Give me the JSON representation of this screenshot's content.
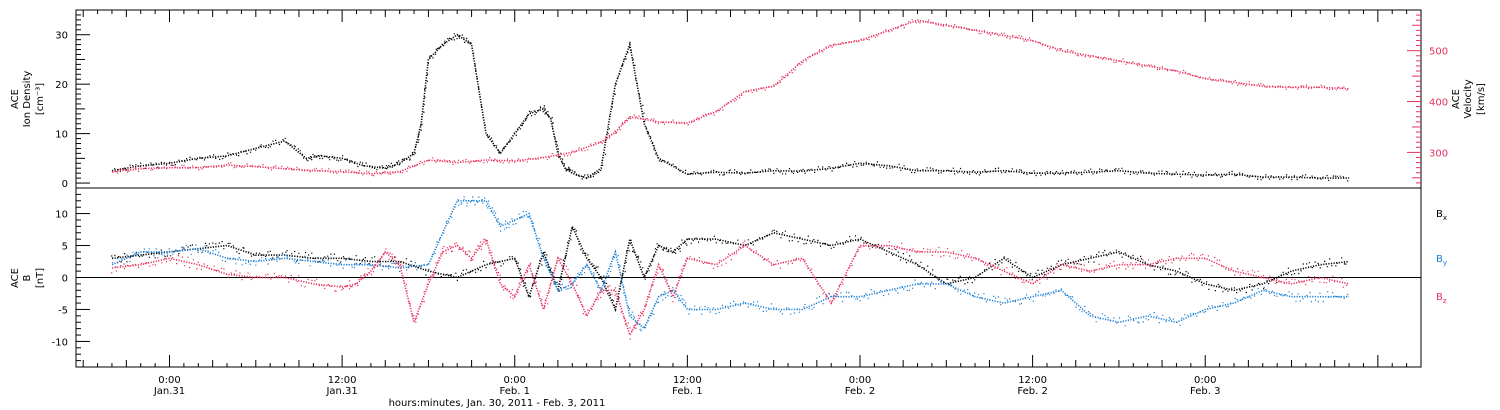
{
  "chart_data": [
    {
      "type": "scatter",
      "ylabel_left_lines": [
        "ACE",
        "Ion Density",
        "[cm⁻³]"
      ],
      "ylabel_right_lines": [
        "ACE",
        "Velocity",
        "[km/s]"
      ],
      "ylim_left": [
        -1,
        35
      ],
      "ylim_right": [
        230,
        580
      ],
      "yticks_left": [
        0,
        10,
        20,
        30
      ],
      "yticks_right": [
        300,
        400,
        500
      ],
      "series": [
        {
          "axis": "left",
          "color": "#000000",
          "x": [
            -4,
            -2,
            0,
            2,
            4,
            6,
            8,
            9.5,
            10.5,
            12,
            13.5,
            15,
            16,
            17,
            17.5,
            18,
            19,
            20,
            21,
            22,
            23,
            24,
            25,
            26,
            26.5,
            27,
            27.5,
            28,
            29,
            30,
            31,
            32,
            33,
            34,
            36,
            38,
            40,
            42,
            44,
            46,
            48,
            50,
            52,
            54,
            56,
            58,
            60,
            62,
            64,
            66,
            68,
            70,
            72,
            74,
            76,
            78,
            80,
            82
          ],
          "y": [
            2.5,
            3.5,
            4,
            5,
            5.5,
            7,
            8.5,
            5,
            5.5,
            5,
            3.5,
            3,
            4,
            6,
            12,
            25,
            28,
            30,
            28,
            10,
            6,
            10,
            14,
            15,
            13,
            6,
            3,
            2,
            1,
            3,
            20,
            28,
            12,
            5,
            1.8,
            2.2,
            2,
            2.5,
            2.4,
            3,
            4,
            3.5,
            2.5,
            2.5,
            2.2,
            2.5,
            2,
            2,
            2.2,
            2.5,
            2,
            1.8,
            1.6,
            1.8,
            1.2,
            1.2,
            1,
            1
          ]
        },
        {
          "axis": "right",
          "color": "#e8305e",
          "x": [
            -4,
            -2,
            0,
            2,
            4,
            6,
            8,
            10,
            12,
            14,
            16,
            18,
            20,
            22,
            24,
            26,
            28,
            30,
            31,
            32,
            34,
            36,
            38,
            40,
            42,
            44,
            46,
            48,
            50,
            52,
            54,
            56,
            58,
            60,
            62,
            64,
            66,
            68,
            70,
            72,
            74,
            76,
            78,
            80,
            82
          ],
          "y": [
            262,
            268,
            270,
            270,
            275,
            272,
            268,
            264,
            262,
            258,
            262,
            285,
            280,
            285,
            283,
            290,
            300,
            320,
            340,
            370,
            360,
            358,
            380,
            420,
            430,
            480,
            510,
            520,
            540,
            560,
            550,
            540,
            530,
            520,
            500,
            490,
            480,
            470,
            460,
            445,
            438,
            430,
            428,
            428,
            425
          ]
        }
      ]
    },
    {
      "type": "scatter",
      "ylabel_lines": [
        "ACE",
        "B",
        "[nT]"
      ],
      "ylim": [
        -14,
        14
      ],
      "yticks": [
        -10,
        -5,
        0,
        5,
        10
      ],
      "zero_line": true,
      "series": [
        {
          "name": "Bx",
          "label_main": "B",
          "label_sub": "x",
          "color": "#000000",
          "x": [
            -4,
            -2,
            0,
            2,
            4,
            6,
            8,
            10,
            12,
            14,
            16,
            18,
            20,
            22,
            24,
            25,
            26,
            27,
            28,
            29,
            30,
            31,
            32,
            33,
            34,
            35,
            36,
            38,
            40,
            42,
            44,
            46,
            48,
            50,
            52,
            54,
            56,
            58,
            60,
            62,
            64,
            66,
            68,
            70,
            72,
            74,
            76,
            78,
            80,
            82
          ],
          "y": [
            3,
            3.5,
            4,
            4.5,
            5,
            3.5,
            3.5,
            3,
            3,
            2.5,
            2.5,
            1,
            0,
            2,
            3,
            -3,
            4,
            -2,
            8,
            3,
            0,
            -5,
            6,
            0,
            5,
            4,
            6,
            6,
            5,
            7,
            6,
            5,
            6,
            4,
            2,
            -1,
            0,
            3,
            0,
            2,
            3,
            4,
            2,
            1,
            -1,
            -2,
            -1,
            1,
            2,
            2.5
          ]
        },
        {
          "name": "By",
          "label_main": "B",
          "label_sub": "y",
          "color": "#1a7fd4",
          "x": [
            -4,
            -2,
            0,
            2,
            4,
            6,
            8,
            10,
            12,
            14,
            16,
            18,
            20,
            21,
            22,
            23,
            24,
            25,
            26,
            27,
            28,
            29,
            30,
            31,
            32,
            33,
            34,
            35,
            36,
            38,
            40,
            42,
            44,
            46,
            48,
            50,
            52,
            54,
            56,
            58,
            60,
            62,
            64,
            66,
            68,
            70,
            72,
            74,
            76,
            78,
            80,
            82
          ],
          "y": [
            2,
            4,
            4,
            4.5,
            3,
            2.5,
            3,
            2.5,
            2,
            2,
            1.5,
            2,
            12,
            12,
            12,
            8,
            9,
            10,
            3,
            -2,
            -1,
            2,
            -2,
            4,
            -6,
            -8,
            -3,
            -2,
            -5,
            -5,
            -4,
            -5,
            -5,
            -3,
            -3,
            -2,
            -1,
            -1,
            -3,
            -4,
            -3,
            -2,
            -6,
            -7,
            -6,
            -7,
            -5,
            -4,
            -2,
            -3,
            -3,
            -3
          ]
        },
        {
          "name": "Bz",
          "label_main": "B",
          "label_sub": "z",
          "color": "#e8305e",
          "x": [
            -4,
            -2,
            0,
            2,
            4,
            6,
            8,
            10,
            12,
            13,
            14,
            15,
            16,
            17,
            18,
            19,
            20,
            21,
            22,
            23,
            24,
            25,
            26,
            27,
            28,
            29,
            30,
            31,
            32,
            33,
            34,
            35,
            36,
            38,
            40,
            42,
            44,
            46,
            48,
            50,
            52,
            54,
            56,
            58,
            60,
            62,
            64,
            66,
            68,
            70,
            72,
            74,
            76,
            78,
            80,
            82
          ],
          "y": [
            1.5,
            2,
            3,
            2,
            0.5,
            0,
            0,
            -1,
            -1.5,
            -1,
            1,
            4,
            2,
            -7,
            -1,
            4,
            5,
            3,
            6,
            -1,
            -3,
            2,
            -5,
            3,
            -1,
            -6,
            -2,
            -2,
            -9,
            -5,
            2,
            -3,
            3,
            2,
            5,
            2,
            3,
            -4,
            5,
            5,
            4,
            4,
            3,
            1,
            -1,
            2,
            1,
            2,
            2,
            3,
            3,
            1,
            0,
            -1,
            0,
            -1
          ]
        }
      ]
    }
  ],
  "x_axis": {
    "xlim": [
      -6.5,
      87
    ],
    "ticks": [
      {
        "x": 0,
        "line1": "0:00",
        "line2": "Jan.31"
      },
      {
        "x": 12,
        "line1": "12:00",
        "line2": "Jan.31"
      },
      {
        "x": 24,
        "line1": "0:00",
        "line2": "Feb. 1"
      },
      {
        "x": 36,
        "line1": "12:00",
        "line2": "Feb. 1"
      },
      {
        "x": 48,
        "line1": "0:00",
        "line2": "Feb. 2"
      },
      {
        "x": 60,
        "line1": "12:00",
        "line2": "Feb. 2"
      },
      {
        "x": 72,
        "line1": "0:00",
        "line2": "Feb. 3"
      }
    ],
    "xlabel": "hours:minutes, Jan. 30, 2011 - Feb.  3, 2011"
  }
}
